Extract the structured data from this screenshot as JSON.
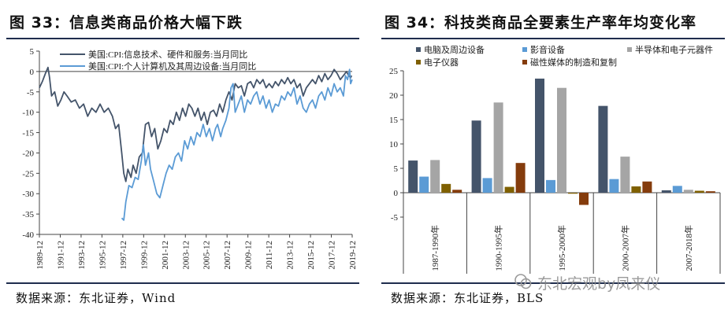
{
  "left": {
    "title": "图 33：信息类商品价格大幅下跌",
    "source": "数据来源：东北证券，Wind",
    "chart_data": {
      "type": "line",
      "ylim": [
        -40,
        5
      ],
      "yticks": [
        5,
        0,
        -5,
        -10,
        -15,
        -20,
        -25,
        -30,
        -35,
        -40
      ],
      "xlim": [
        1989.917,
        2020.25
      ],
      "xticks": [
        "1989-12",
        "1991-12",
        "1993-12",
        "1995-12",
        "1997-12",
        "1999-12",
        "2001-12",
        "2003-12",
        "2005-12",
        "2007-12",
        "2009-12",
        "2011-12",
        "2013-12",
        "2015-12",
        "2017-12",
        "2019-12"
      ],
      "legend_position": "top-left",
      "grid": false,
      "series": [
        {
          "name": "美国:CPI:信息技术、硬件和服务:当月同比",
          "color": "#44546a",
          "points": [
            [
              1989.92,
              -4
            ],
            [
              1990.2,
              -2.5
            ],
            [
              1990.5,
              -0.5
            ],
            [
              1990.75,
              1
            ],
            [
              1990.9,
              -1.5
            ],
            [
              1991.1,
              -6
            ],
            [
              1991.4,
              -5
            ],
            [
              1991.7,
              -8.5
            ],
            [
              1992.0,
              -7
            ],
            [
              1992.3,
              -5
            ],
            [
              1992.6,
              -6
            ],
            [
              1993.0,
              -7.5
            ],
            [
              1993.4,
              -7
            ],
            [
              1993.8,
              -9
            ],
            [
              1994.2,
              -8
            ],
            [
              1994.6,
              -11
            ],
            [
              1995.0,
              -9
            ],
            [
              1995.4,
              -10
            ],
            [
              1995.8,
              -8
            ],
            [
              1996.2,
              -10
            ],
            [
              1996.6,
              -9
            ],
            [
              1997.0,
              -11
            ],
            [
              1997.3,
              -14
            ],
            [
              1997.6,
              -13
            ],
            [
              1997.9,
              -20
            ],
            [
              1998.1,
              -25
            ],
            [
              1998.3,
              -27
            ],
            [
              1998.5,
              -24
            ],
            [
              1998.8,
              -26
            ],
            [
              1999.0,
              -23
            ],
            [
              1999.3,
              -25
            ],
            [
              1999.6,
              -21
            ],
            [
              1999.9,
              -20
            ],
            [
              2000.2,
              -13
            ],
            [
              2000.5,
              -12.5
            ],
            [
              2000.8,
              -16
            ],
            [
              2001.1,
              -14
            ],
            [
              2001.4,
              -19
            ],
            [
              2001.7,
              -17
            ],
            [
              2002.0,
              -14
            ],
            [
              2002.3,
              -15
            ],
            [
              2002.6,
              -12
            ],
            [
              2002.9,
              -13
            ],
            [
              2003.2,
              -10
            ],
            [
              2003.5,
              -12
            ],
            [
              2003.8,
              -9
            ],
            [
              2004.1,
              -11
            ],
            [
              2004.4,
              -8
            ],
            [
              2004.7,
              -9
            ],
            [
              2005.0,
              -11
            ],
            [
              2005.3,
              -9
            ],
            [
              2005.6,
              -12
            ],
            [
              2005.9,
              -10
            ],
            [
              2006.2,
              -13
            ],
            [
              2006.5,
              -10
            ],
            [
              2006.8,
              -9.5
            ],
            [
              2007.1,
              -11
            ],
            [
              2007.4,
              -8
            ],
            [
              2007.7,
              -10
            ],
            [
              2008.0,
              -7
            ],
            [
              2008.3,
              -5
            ],
            [
              2008.6,
              -7
            ],
            [
              2008.9,
              -3
            ],
            [
              2009.2,
              -4
            ],
            [
              2009.5,
              -3.5
            ],
            [
              2009.8,
              -6
            ],
            [
              2010.1,
              -3
            ],
            [
              2010.4,
              -2.5
            ],
            [
              2010.7,
              -4
            ],
            [
              2011.0,
              -2
            ],
            [
              2011.3,
              -3
            ],
            [
              2011.6,
              -2
            ],
            [
              2011.9,
              -4
            ],
            [
              2012.2,
              -3
            ],
            [
              2012.5,
              -4
            ],
            [
              2012.8,
              -2.5
            ],
            [
              2013.1,
              -3.5
            ],
            [
              2013.4,
              -2
            ],
            [
              2013.7,
              -3
            ],
            [
              2014.0,
              -1.5
            ],
            [
              2014.3,
              -3
            ],
            [
              2014.6,
              -2
            ],
            [
              2014.9,
              -4
            ],
            [
              2015.2,
              -3
            ],
            [
              2015.5,
              -6
            ],
            [
              2015.8,
              -4
            ],
            [
              2016.1,
              -3
            ],
            [
              2016.4,
              -2
            ],
            [
              2016.7,
              -3
            ],
            [
              2017.0,
              -1
            ],
            [
              2017.3,
              -2.5
            ],
            [
              2017.6,
              -0.5
            ],
            [
              2017.9,
              -2
            ],
            [
              2018.2,
              -1
            ],
            [
              2018.5,
              0.5
            ],
            [
              2018.8,
              -0.5
            ],
            [
              2019.1,
              -2
            ],
            [
              2019.4,
              -1
            ],
            [
              2019.7,
              0
            ],
            [
              2019.9,
              -1
            ],
            [
              2020.1,
              -1.5
            ],
            [
              2020.2,
              -1
            ]
          ]
        },
        {
          "name": "美国:CPI:个人计算机及其周边设备:当月同比",
          "color": "#5b9bd5",
          "points": [
            [
              1997.9,
              -36
            ],
            [
              1998.1,
              -36.5
            ],
            [
              1998.3,
              -32
            ],
            [
              1998.6,
              -28
            ],
            [
              1998.9,
              -28.5
            ],
            [
              1999.2,
              -26
            ],
            [
              1999.5,
              -26.5
            ],
            [
              1999.8,
              -22
            ],
            [
              2000.0,
              -18
            ],
            [
              2000.2,
              -23
            ],
            [
              2000.5,
              -20
            ],
            [
              2000.7,
              -24
            ],
            [
              2001.0,
              -27
            ],
            [
              2001.3,
              -30
            ],
            [
              2001.6,
              -31
            ],
            [
              2001.9,
              -28
            ],
            [
              2002.2,
              -25
            ],
            [
              2002.5,
              -23
            ],
            [
              2002.8,
              -24
            ],
            [
              2003.1,
              -21
            ],
            [
              2003.4,
              -20
            ],
            [
              2003.7,
              -22
            ],
            [
              2004.0,
              -17
            ],
            [
              2004.3,
              -19
            ],
            [
              2004.6,
              -16
            ],
            [
              2004.9,
              -18
            ],
            [
              2005.2,
              -15
            ],
            [
              2005.5,
              -16
            ],
            [
              2005.8,
              -13
            ],
            [
              2006.1,
              -16
            ],
            [
              2006.4,
              -14
            ],
            [
              2006.7,
              -17
            ],
            [
              2007.0,
              -14
            ],
            [
              2007.2,
              -13
            ],
            [
              2007.5,
              -16
            ],
            [
              2007.7,
              -14
            ],
            [
              2008.0,
              -12
            ],
            [
              2008.3,
              -9
            ],
            [
              2008.5,
              -4
            ],
            [
              2008.7,
              -3
            ],
            [
              2008.9,
              -10
            ],
            [
              2009.2,
              -8
            ],
            [
              2009.5,
              -6
            ],
            [
              2009.8,
              -10
            ],
            [
              2010.1,
              -7
            ],
            [
              2010.4,
              -8
            ],
            [
              2010.7,
              -6
            ],
            [
              2011.0,
              -5
            ],
            [
              2011.3,
              -8
            ],
            [
              2011.6,
              -6
            ],
            [
              2011.9,
              -9
            ],
            [
              2012.2,
              -7
            ],
            [
              2012.5,
              -10
            ],
            [
              2012.8,
              -8
            ],
            [
              2013.1,
              -8.5
            ],
            [
              2013.4,
              -6
            ],
            [
              2013.7,
              -7
            ],
            [
              2014.0,
              -5
            ],
            [
              2014.3,
              -6
            ],
            [
              2014.6,
              -4
            ],
            [
              2014.9,
              -8
            ],
            [
              2015.2,
              -6
            ],
            [
              2015.5,
              -9
            ],
            [
              2015.8,
              -10
            ],
            [
              2016.1,
              -8
            ],
            [
              2016.4,
              -7
            ],
            [
              2016.7,
              -9
            ],
            [
              2017.0,
              -6
            ],
            [
              2017.3,
              -5
            ],
            [
              2017.6,
              -7
            ],
            [
              2017.9,
              -4
            ],
            [
              2018.2,
              -6
            ],
            [
              2018.5,
              -3
            ],
            [
              2018.8,
              -5
            ],
            [
              2019.1,
              -4
            ],
            [
              2019.4,
              -6
            ],
            [
              2019.6,
              -1
            ],
            [
              2019.8,
              -2
            ],
            [
              2020.0,
              0.5
            ],
            [
              2020.1,
              -3
            ],
            [
              2020.25,
              -2
            ]
          ]
        }
      ]
    }
  },
  "right": {
    "title": "图 34：科技类商品全要素生产率年均变化率",
    "source": "数据来源：东北证券，BLS",
    "chart_data": {
      "type": "bar",
      "categories": [
        "1987-1990年",
        "1990-1995年",
        "1995-2000年",
        "2000-2007年",
        "2007-2018年"
      ],
      "ylim": [
        -5,
        25
      ],
      "yticks": [
        25,
        20,
        15,
        10,
        5,
        0,
        -5
      ],
      "legend_position": "top",
      "grid": false,
      "series": [
        {
          "name": "电脑及周边设备",
          "color": "#44546a",
          "values": [
            6.6,
            14.8,
            23.4,
            17.8,
            0.5
          ]
        },
        {
          "name": "影音设备",
          "color": "#5b9bd5",
          "values": [
            3.3,
            3.0,
            2.6,
            2.8,
            1.4
          ]
        },
        {
          "name": "半导体和电子元器件",
          "color": "#a5a5a5",
          "values": [
            6.7,
            18.5,
            21.5,
            7.4,
            0.6
          ]
        },
        {
          "name": "电子仪器",
          "color": "#7f6000",
          "values": [
            1.8,
            1.2,
            -0.2,
            1.3,
            0.4
          ]
        },
        {
          "name": "磁性媒体的制造和复制",
          "color": "#843c0c",
          "values": [
            0.6,
            6.1,
            -2.5,
            2.3,
            0.3
          ]
        }
      ]
    }
  },
  "watermark": {
    "text": "东北宏观by凤来仪"
  }
}
